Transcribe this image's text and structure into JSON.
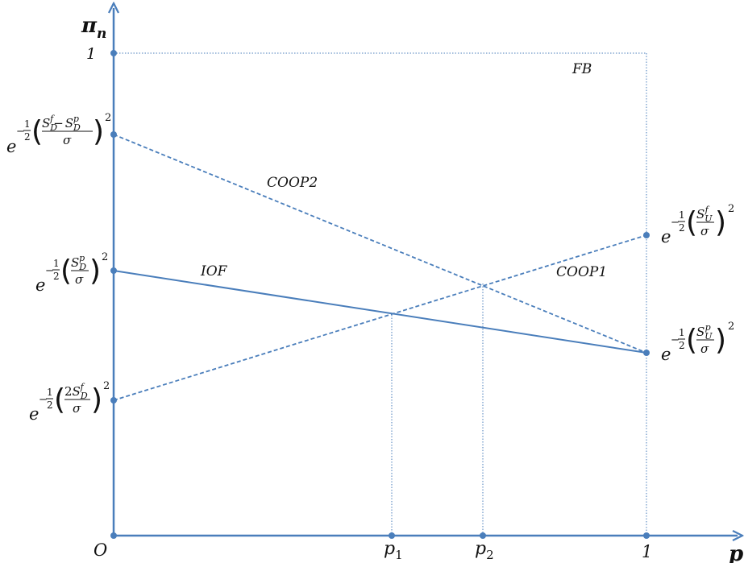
{
  "diagram": {
    "y_axis_label": "π",
    "y_axis_subscript": "n",
    "x_axis_label": "p",
    "origin_label": "O",
    "y_tick_one": "1",
    "x_tick_one": "1",
    "x_tick_p1": "p",
    "x_tick_p1_sub": "1",
    "x_tick_p2": "p",
    "x_tick_p2_sub": "2",
    "curve_fb": "FB",
    "curve_coop2": "COOP2",
    "curve_iof": "IOF",
    "curve_coop1": "COOP1",
    "color_axis": "#4a7ebb",
    "y_values": {
      "diff_label": "e^{-1/2((S_D^f - S_D^p)/σ)^2}",
      "sdp_label": "e^{-1/2(S_D^p/σ)^2}",
      "two_sdf_label": "e^{-1/2(2S_D^f/σ)^2}",
      "suf_label": "e^{-1/2(S_U^f/σ)^2}",
      "sup_label": "e^{-1/2(S_U^p/σ)^2}"
    }
  }
}
